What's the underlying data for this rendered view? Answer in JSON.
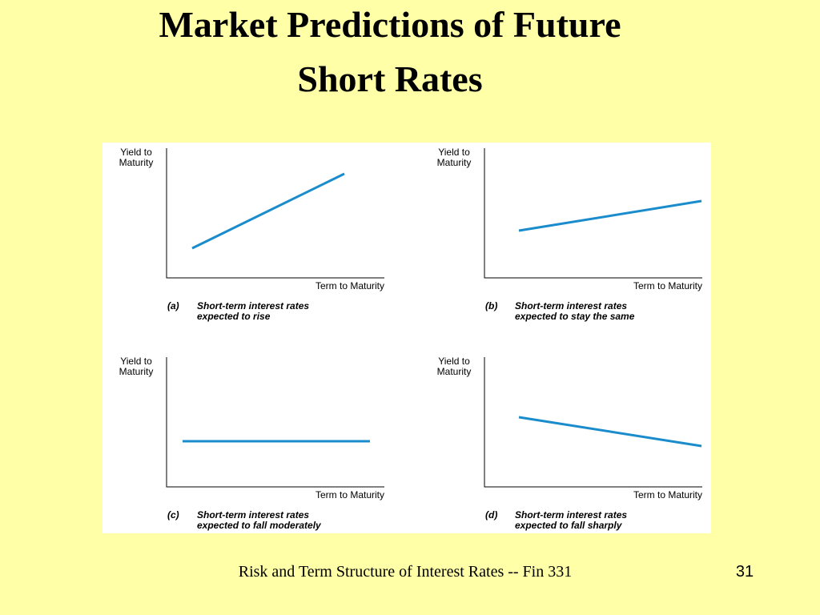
{
  "title": [
    "Market Predictions of Future",
    "Short Rates"
  ],
  "panels": [
    {
      "y_label": [
        "Yield to",
        "Maturity"
      ],
      "x_label": "Term to Maturity",
      "letter": "(a)",
      "caption": [
        "Short-term interest rates",
        "expected to rise"
      ]
    },
    {
      "y_label": [
        "Yield to",
        "Maturity"
      ],
      "x_label": "Term to Maturity",
      "letter": "(b)",
      "caption": [
        "Short-term interest rates",
        "expected to stay the same"
      ]
    },
    {
      "y_label": [
        "Yield to",
        "Maturity"
      ],
      "x_label": "Term to Maturity",
      "letter": "(c)",
      "caption": [
        "Short-term interest rates",
        "expected to fall moderately"
      ]
    },
    {
      "y_label": [
        "Yield to",
        "Maturity"
      ],
      "x_label": "Term to Maturity",
      "letter": "(d)",
      "caption": [
        "Short-term interest rates",
        "expected to fall sharply"
      ]
    }
  ],
  "footer": "Risk and Term Structure of Interest Rates -- Fin 331",
  "page_number": "31"
}
